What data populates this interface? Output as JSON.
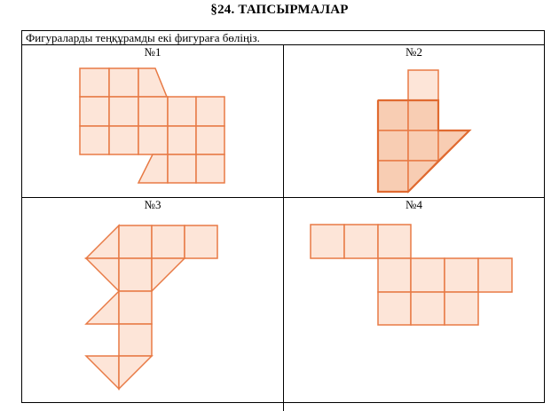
{
  "header": {
    "title": "§24. ТАПСЫРМАЛАР"
  },
  "task": {
    "instruction": "Фигураларды теңқұрамды екі фигураға бөліңіз."
  },
  "figures": [
    {
      "label": "№1"
    },
    {
      "label": "№2"
    },
    {
      "label": "№3"
    },
    {
      "label": "№4"
    }
  ],
  "colors": {
    "fill": "#fde5d8",
    "fill_dark": "#f8cdb3",
    "stroke": "#e87a45"
  }
}
